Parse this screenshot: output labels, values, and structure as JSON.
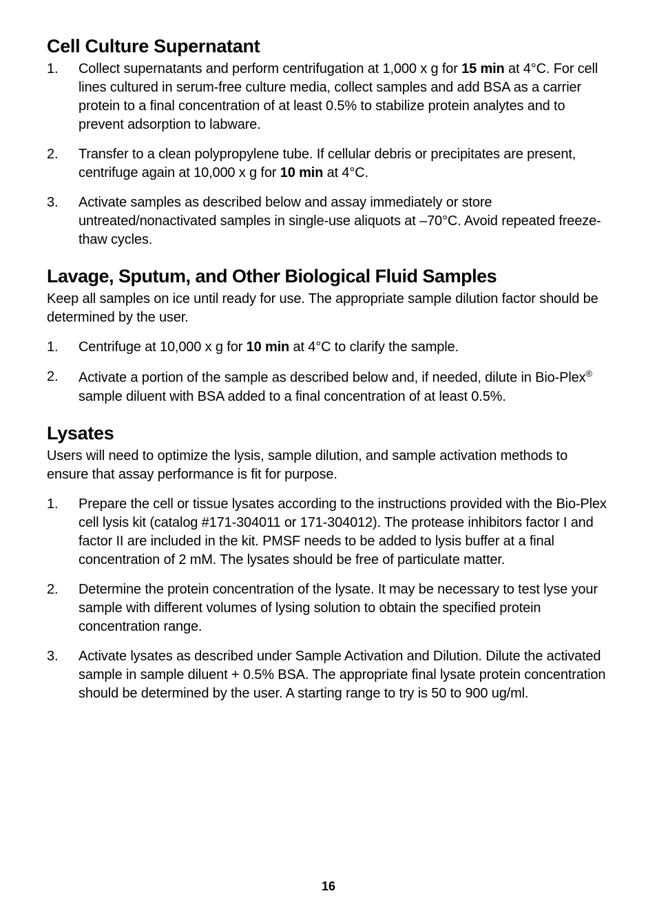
{
  "sections": {
    "cellCulture": {
      "heading": "Cell Culture Supernatant",
      "items": [
        {
          "pre": "Collect supernatants and perform centrifugation at 1,000 x g for ",
          "bold1": "15 min",
          "post": " at 4°C. For cell lines cultured in serum-free culture media, collect samples and add BSA as a carrier protein to a final concentration of at least 0.5% to stabilize protein analytes and to prevent adsorption to labware."
        },
        {
          "pre": "Transfer to a clean polypropylene tube. If cellular debris or precipitates are present, centrifuge again at 10,000 x g for ",
          "bold1": "10 min",
          "post": " at 4°C."
        },
        {
          "pre": "Activate samples as described below and assay immediately or store untreated/nonactivated samples in single-use aliquots at –70°C. Avoid repeated freeze-thaw cycles."
        }
      ]
    },
    "lavage": {
      "heading": "Lavage, Sputum, and Other Biological Fluid Samples",
      "intro": "Keep all samples on ice until ready for use. The appropriate sample dilution factor should be determined by the user.",
      "items": [
        {
          "pre": "Centrifuge at 10,000 x g for ",
          "bold1": "10 min",
          "post": " at 4°C to clarify the sample."
        },
        {
          "pre": "Activate a portion of the sample as described below and, if needed, dilute in Bio-Plex",
          "sup": "®",
          "post": " sample diluent with BSA added to a final concentration of at least 0.5%."
        }
      ]
    },
    "lysates": {
      "heading": "Lysates",
      "intro": "Users will need to optimize the lysis, sample dilution, and sample activation methods to ensure that assay performance is fit for purpose.",
      "items": [
        {
          "pre": "Prepare the cell or tissue lysates according to the instructions provided with the Bio-Plex cell lysis kit (catalog #171-304011 or 171-304012). The protease inhibitors factor I and factor II are included in the kit. PMSF needs to be added to lysis buffer at a final concentration of 2 mM. The lysates should be free of particulate matter."
        },
        {
          "pre": "Determine the protein concentration of the lysate. It may be necessary to test lyse your sample with different volumes of lysing solution to obtain the specified protein concentration range."
        },
        {
          "pre": "Activate lysates as described under Sample Activation and Dilution. Dilute the activated sample in sample diluent + 0.5% BSA. The appropriate final lysate protein concentration should be determined by the user. A starting range to try is 50 to 900 ug/ml."
        }
      ]
    }
  },
  "pageNumber": "16"
}
